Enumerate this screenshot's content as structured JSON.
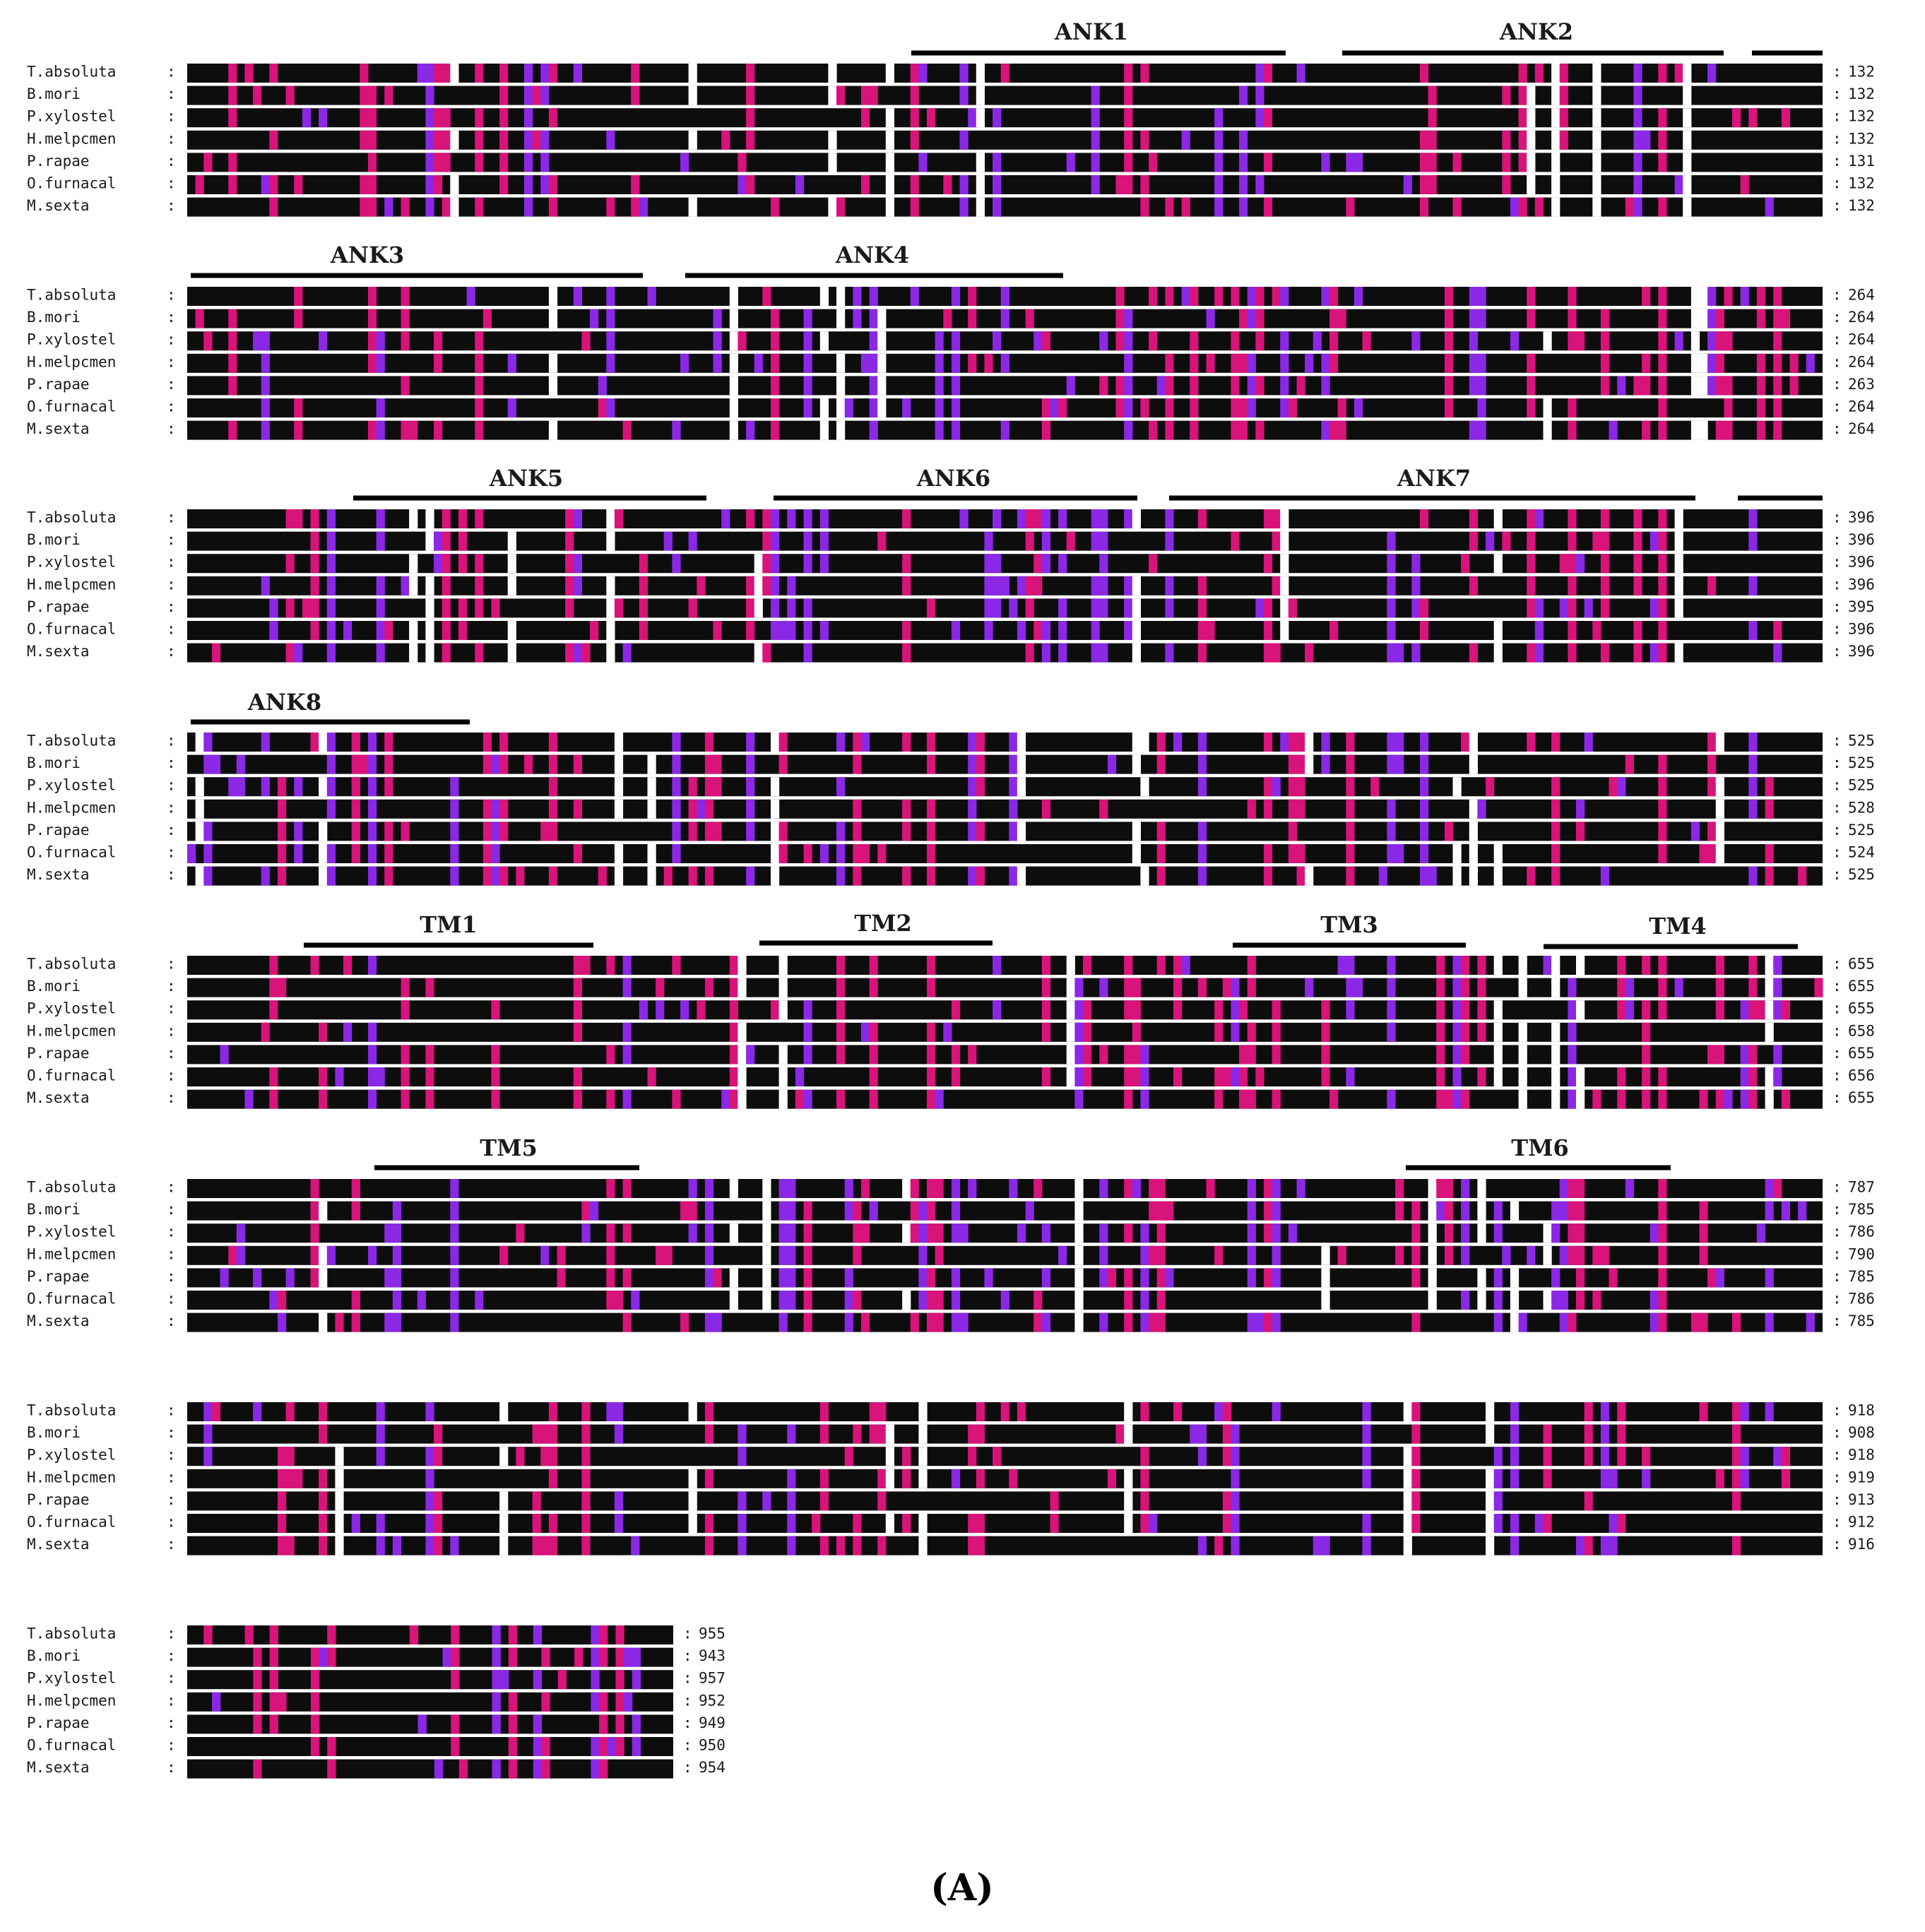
{
  "panel_label": "(A)",
  "colors": {
    "identical": "#0d0d0d",
    "high": "#d8137a",
    "medium": "#8a28e6",
    "divider": "#000000"
  },
  "species": [
    "T.absoluta",
    "B.mori",
    "P.xylostel",
    "H.melpcmen",
    "P.rapae",
    "O.furnacal",
    "M.sexta"
  ],
  "blocks": [
    {
      "id": "block-1",
      "counts": [
        "132",
        "132",
        "132",
        "132",
        "131",
        "132",
        "132"
      ],
      "domains": [
        {
          "label": "ANK1"
        },
        {
          "label": "ANK2"
        },
        {
          "label": ""
        }
      ]
    },
    {
      "id": "block-2",
      "counts": [
        "264",
        "264",
        "264",
        "264",
        "263",
        "264",
        "264"
      ],
      "domains": [
        {
          "label": "ANK3"
        },
        {
          "label": "ANK4"
        }
      ]
    },
    {
      "id": "block-3",
      "counts": [
        "396",
        "396",
        "396",
        "396",
        "395",
        "396",
        "396"
      ],
      "domains": [
        {
          "label": "ANK5"
        },
        {
          "label": "ANK6"
        },
        {
          "label": "ANK7"
        },
        {
          "label": ""
        }
      ]
    },
    {
      "id": "block-4",
      "counts": [
        "525",
        "525",
        "525",
        "528",
        "525",
        "524",
        "525"
      ],
      "domains": [
        {
          "label": "ANK8"
        }
      ]
    },
    {
      "id": "block-5",
      "counts": [
        "655",
        "655",
        "655",
        "658",
        "655",
        "656",
        "655"
      ],
      "domains": [
        {
          "label": "TM1"
        },
        {
          "label": "TM2"
        },
        {
          "label": "TM3"
        },
        {
          "label": "TM4"
        }
      ]
    },
    {
      "id": "block-6",
      "counts": [
        "787",
        "785",
        "786",
        "790",
        "785",
        "786",
        "785"
      ],
      "domains": [
        {
          "label": "TM5"
        },
        {
          "label": "TM6"
        }
      ]
    },
    {
      "id": "block-7",
      "counts": [
        "918",
        "908",
        "918",
        "919",
        "913",
        "912",
        "916"
      ],
      "domains": []
    },
    {
      "id": "block-8",
      "counts": [
        "955",
        "943",
        "957",
        "952",
        "949",
        "950",
        "954"
      ],
      "domains": []
    }
  ]
}
